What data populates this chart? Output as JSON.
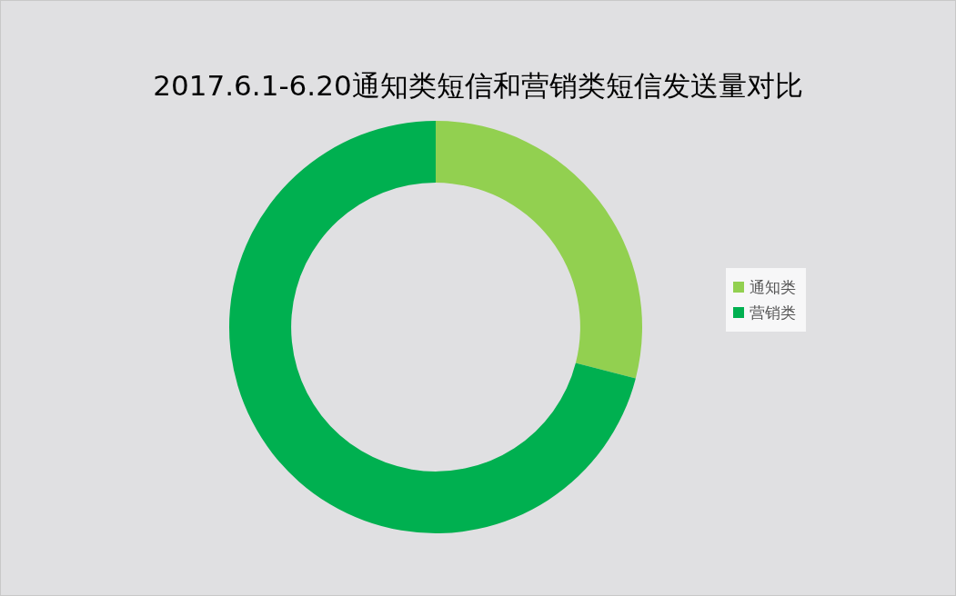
{
  "chart_data": {
    "type": "donut",
    "title": "2017.6.1-6.20通知类短信和营销类短信发送量对比",
    "categories": [
      "通知类",
      "营销类"
    ],
    "values": [
      29,
      71
    ],
    "colors": [
      "#92d050",
      "#00b050"
    ],
    "legend": "right"
  }
}
